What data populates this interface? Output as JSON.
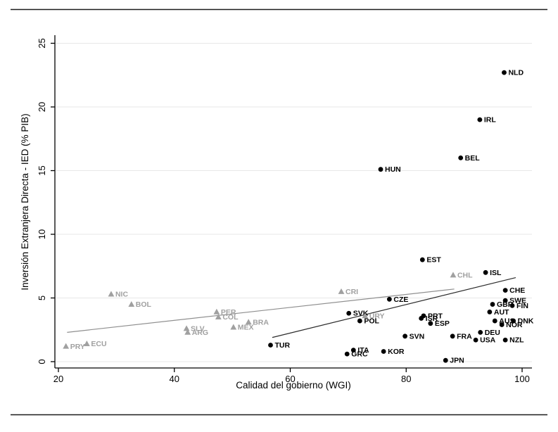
{
  "chart_data": {
    "type": "scatter",
    "title": "",
    "xlabel": "Calidad del gobierno (WGI)",
    "ylabel": "Inversión Extranjera Directa - IED (% PIB)",
    "xlim": [
      19.4,
      101.7
    ],
    "ylim": [
      -0.5,
      25.6
    ],
    "x_ticks": [
      20,
      40,
      60,
      80,
      100
    ],
    "y_ticks": [
      0,
      5,
      10,
      15,
      20,
      25
    ],
    "grid": "horizontal",
    "legend": "none",
    "colors": {
      "circle_marker": "#000000",
      "circle_label": "#000000",
      "triangle_marker": "#a0a0a0",
      "triangle_label": "#a0a0a0",
      "fit_line_dark": "#2b2b2b",
      "fit_line_gray": "#8f8f8f",
      "gridline": "#e7e7e7",
      "axis": "#000000"
    },
    "series": [
      {
        "marker": "circle",
        "points": [
          {
            "label": "NLD",
            "x": 96.9,
            "y": 22.7
          },
          {
            "label": "IRL",
            "x": 92.7,
            "y": 19.0
          },
          {
            "label": "BEL",
            "x": 89.4,
            "y": 16.0
          },
          {
            "label": "HUN",
            "x": 75.6,
            "y": 15.1
          },
          {
            "label": "EST",
            "x": 82.8,
            "y": 8.0
          },
          {
            "label": "ISL",
            "x": 93.7,
            "y": 7.0
          },
          {
            "label": "CHE",
            "x": 97.1,
            "y": 5.6
          },
          {
            "label": "CZE",
            "x": 77.1,
            "y": 4.9
          },
          {
            "label": "SWE",
            "x": 97.1,
            "y": 4.8
          },
          {
            "label": "GBR",
            "x": 94.9,
            "y": 4.5
          },
          {
            "label": "FIN",
            "x": 98.3,
            "y": 4.4
          },
          {
            "label": "AUT",
            "x": 94.4,
            "y": 3.9
          },
          {
            "label": "SVK",
            "x": 70.1,
            "y": 3.8
          },
          {
            "label": "PRT",
            "x": 83.0,
            "y": 3.6
          },
          {
            "label": "ISR",
            "x": 82.6,
            "y": 3.4
          },
          {
            "label": "POL",
            "x": 72.0,
            "y": 3.2
          },
          {
            "label": "ESP",
            "x": 84.2,
            "y": 3.0
          },
          {
            "label": "AUS",
            "x": 95.3,
            "y": 3.2
          },
          {
            "label": "DNK",
            "x": 98.5,
            "y": 3.2
          },
          {
            "label": "NOR",
            "x": 96.5,
            "y": 2.9
          },
          {
            "label": "DEU",
            "x": 92.8,
            "y": 2.3
          },
          {
            "label": "USA",
            "x": 92.0,
            "y": 1.7
          },
          {
            "label": "FRA",
            "x": 88.0,
            "y": 2.0
          },
          {
            "label": "NZL",
            "x": 97.1,
            "y": 1.7
          },
          {
            "label": "SVN",
            "x": 79.8,
            "y": 2.0
          },
          {
            "label": "TUR",
            "x": 56.6,
            "y": 1.3
          },
          {
            "label": "KOR",
            "x": 76.1,
            "y": 0.8
          },
          {
            "label": "ITA",
            "x": 70.9,
            "y": 0.9
          },
          {
            "label": "GRC",
            "x": 69.8,
            "y": 0.6
          },
          {
            "label": "JPN",
            "x": 86.8,
            "y": 0.1
          }
        ]
      },
      {
        "marker": "triangle",
        "points": [
          {
            "label": "CHL",
            "x": 88.1,
            "y": 6.8
          },
          {
            "label": "CRI",
            "x": 68.8,
            "y": 5.5
          },
          {
            "label": "URY",
            "x": 72.9,
            "y": 3.6
          },
          {
            "label": "NIC",
            "x": 29.1,
            "y": 5.3
          },
          {
            "label": "BOL",
            "x": 32.6,
            "y": 4.5
          },
          {
            "label": "PER",
            "x": 47.3,
            "y": 3.9
          },
          {
            "label": "COL",
            "x": 47.6,
            "y": 3.5
          },
          {
            "label": "BRA",
            "x": 52.8,
            "y": 3.1
          },
          {
            "label": "MEX",
            "x": 50.2,
            "y": 2.7
          },
          {
            "label": "SLV",
            "x": 42.1,
            "y": 2.6
          },
          {
            "label": "ARG",
            "x": 42.3,
            "y": 2.3
          },
          {
            "label": "ECU",
            "x": 24.9,
            "y": 1.4
          },
          {
            "label": "PRY",
            "x": 21.3,
            "y": 1.2
          }
        ]
      }
    ],
    "fit_lines": [
      {
        "for_marker": "circle",
        "x1": 56.9,
        "y1": 1.9,
        "x2": 98.9,
        "y2": 6.6
      },
      {
        "for_marker": "triangle",
        "x1": 21.5,
        "y1": 2.3,
        "x2": 88.3,
        "y2": 5.7
      }
    ]
  }
}
